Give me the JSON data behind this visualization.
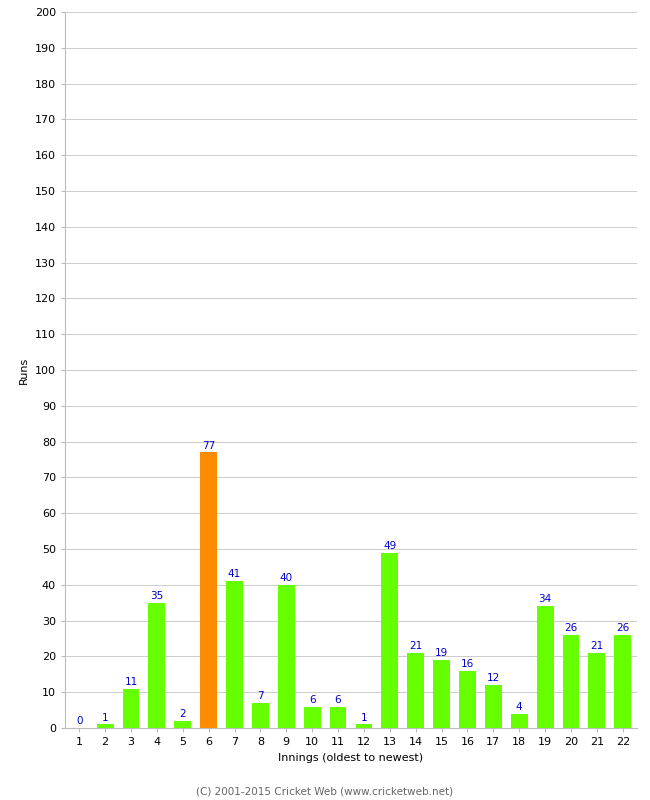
{
  "xlabel": "Innings (oldest to newest)",
  "ylabel": "Runs",
  "categories": [
    1,
    2,
    3,
    4,
    5,
    6,
    7,
    8,
    9,
    10,
    11,
    12,
    13,
    14,
    15,
    16,
    17,
    18,
    19,
    20,
    21,
    22
  ],
  "values": [
    0,
    1,
    11,
    35,
    2,
    77,
    41,
    7,
    40,
    6,
    6,
    1,
    49,
    21,
    19,
    16,
    12,
    4,
    34,
    26,
    21,
    26
  ],
  "bar_colors": [
    "#66ff00",
    "#66ff00",
    "#66ff00",
    "#66ff00",
    "#66ff00",
    "#ff8c00",
    "#66ff00",
    "#66ff00",
    "#66ff00",
    "#66ff00",
    "#66ff00",
    "#66ff00",
    "#66ff00",
    "#66ff00",
    "#66ff00",
    "#66ff00",
    "#66ff00",
    "#66ff00",
    "#66ff00",
    "#66ff00",
    "#66ff00",
    "#66ff00"
  ],
  "ylim": [
    0,
    200
  ],
  "yticks": [
    0,
    10,
    20,
    30,
    40,
    50,
    60,
    70,
    80,
    90,
    100,
    110,
    120,
    130,
    140,
    150,
    160,
    170,
    180,
    190,
    200
  ],
  "label_color": "#0000cc",
  "background_color": "#ffffff",
  "grid_color": "#cccccc",
  "footer": "(C) 2001-2015 Cricket Web (www.cricketweb.net)",
  "label_fontsize": 7.5,
  "axis_tick_fontsize": 8,
  "axis_label_fontsize": 8,
  "bar_width": 0.65
}
